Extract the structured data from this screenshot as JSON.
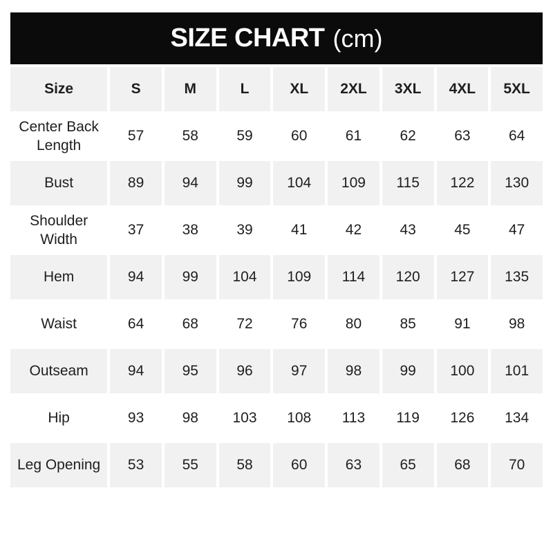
{
  "banner": {
    "title": "SIZE CHART",
    "unit": "(cm)"
  },
  "colors": {
    "banner_bg": "#0b0b0b",
    "cell_gray": "#f1f1f2",
    "text": "#1e1e1e",
    "banner_text": "#ffffff"
  },
  "chart_data": {
    "type": "table",
    "title": "SIZE CHART (cm)",
    "columns": [
      "Size",
      "S",
      "M",
      "L",
      "XL",
      "2XL",
      "3XL",
      "4XL",
      "5XL"
    ],
    "rows": [
      {
        "label": "Center Back Length",
        "values": [
          57,
          58,
          59,
          60,
          61,
          62,
          63,
          64
        ]
      },
      {
        "label": "Bust",
        "values": [
          89,
          94,
          99,
          104,
          109,
          115,
          122,
          130
        ]
      },
      {
        "label": "Shoulder Width",
        "values": [
          37,
          38,
          39,
          41,
          42,
          43,
          45,
          47
        ]
      },
      {
        "label": "Hem",
        "values": [
          94,
          99,
          104,
          109,
          114,
          120,
          127,
          135
        ]
      },
      {
        "label": "Waist",
        "values": [
          64,
          68,
          72,
          76,
          80,
          85,
          91,
          98
        ]
      },
      {
        "label": "Outseam",
        "values": [
          94,
          95,
          96,
          97,
          98,
          99,
          100,
          101
        ]
      },
      {
        "label": "Hip",
        "values": [
          93,
          98,
          103,
          108,
          113,
          119,
          126,
          134
        ]
      },
      {
        "label": "Leg Opening",
        "values": [
          53,
          55,
          58,
          60,
          63,
          65,
          68,
          70
        ]
      }
    ]
  }
}
